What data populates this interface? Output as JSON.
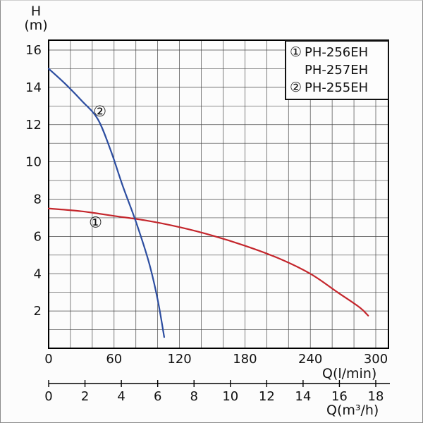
{
  "figure": {
    "y_axis_title_line1": "H",
    "y_axis_title_line2": "(m)",
    "x_axis_title": "Q(l/min)",
    "x2_axis_title": "Q(m³/h)"
  },
  "chart_data": {
    "type": "line",
    "ylabel": "H (m)",
    "xlabel": "Q (l/min)",
    "x2label": "Q (m³/h)",
    "grid": true,
    "legend_position": "top-right",
    "axes": {
      "y": {
        "min": 0,
        "max": 16,
        "major_ticks": [
          2,
          4,
          6,
          8,
          10,
          12,
          14,
          16
        ],
        "minor_step": 1
      },
      "x": {
        "min": 0,
        "max": 300,
        "major_ticks": [
          0,
          60,
          120,
          180,
          240,
          300
        ],
        "minor_step": 20
      },
      "x2": {
        "min": 0,
        "max": 18,
        "ticks": [
          0,
          2,
          4,
          6,
          8,
          10,
          12,
          14,
          16,
          18
        ]
      }
    },
    "legend": [
      {
        "marker": "①",
        "label": "PH-256EH"
      },
      {
        "marker": "",
        "label": "PH-257EH"
      },
      {
        "marker": "②",
        "label": "PH-255EH"
      }
    ],
    "series": [
      {
        "name": "PH-256EH / PH-257EH",
        "marker": "①",
        "color": "#c4262c",
        "points": [
          [
            0,
            7.5
          ],
          [
            30,
            7.35
          ],
          [
            60,
            7.1
          ],
          [
            90,
            6.85
          ],
          [
            120,
            6.5
          ],
          [
            150,
            6.05
          ],
          [
            180,
            5.5
          ],
          [
            210,
            4.85
          ],
          [
            240,
            4.0
          ],
          [
            265,
            3.0
          ],
          [
            285,
            2.2
          ],
          [
            293,
            1.75
          ]
        ]
      },
      {
        "name": "PH-255EH",
        "marker": "②",
        "color": "#2c4da0",
        "points": [
          [
            0,
            15.0
          ],
          [
            15,
            14.2
          ],
          [
            30,
            13.3
          ],
          [
            45,
            12.3
          ],
          [
            57,
            10.6
          ],
          [
            68,
            8.7
          ],
          [
            80,
            6.8
          ],
          [
            92,
            4.6
          ],
          [
            100,
            2.6
          ],
          [
            106,
            0.6
          ]
        ]
      }
    ],
    "annotations": [
      {
        "text": "②",
        "x": 47,
        "y": 12.7
      },
      {
        "text": "①",
        "x": 43,
        "y": 6.75
      }
    ]
  }
}
